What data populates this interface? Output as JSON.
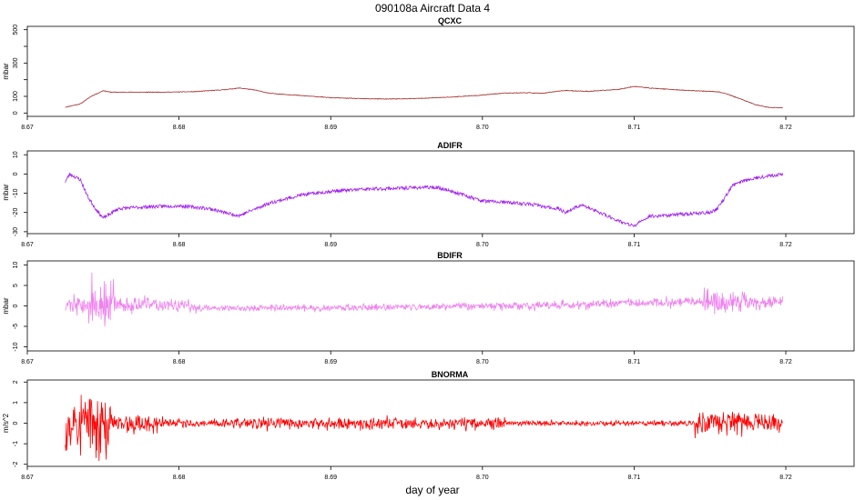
{
  "main_title": "090108a   Aircraft Data 4",
  "xlabel": "day of year",
  "chart_data": [
    {
      "type": "line",
      "title": "QCXC",
      "ylabel": "mbar",
      "color": "#a52a2a",
      "xlim": [
        8.67,
        8.7245
      ],
      "ylim": [
        -20,
        520
      ],
      "yticks": [
        0,
        100,
        200,
        300,
        400,
        500
      ],
      "ytick_labels": [
        "0",
        "100",
        "",
        "300",
        "",
        "500"
      ],
      "xticks": [
        8.67,
        8.68,
        8.69,
        8.7,
        8.71,
        8.72
      ],
      "xtick_labels": [
        "8.67",
        "8.68",
        "8.69",
        "8.70",
        "8.71",
        "8.72"
      ],
      "noise": 2,
      "seed": 11,
      "x": [
        8.6725,
        8.6735,
        8.6742,
        8.6748,
        8.675,
        8.6752,
        8.6755,
        8.677,
        8.679,
        8.681,
        8.683,
        8.684,
        8.685,
        8.686,
        8.688,
        8.69,
        8.692,
        8.694,
        8.696,
        8.698,
        8.7,
        8.7015,
        8.703,
        8.704,
        8.705,
        8.7055,
        8.707,
        8.709,
        8.71,
        8.711,
        8.713,
        8.7155,
        8.716,
        8.717,
        8.718,
        8.7185,
        8.719,
        8.7198
      ],
      "y": [
        35,
        55,
        100,
        125,
        135,
        130,
        125,
        125,
        125,
        128,
        140,
        150,
        138,
        118,
        105,
        92,
        86,
        84,
        88,
        96,
        108,
        120,
        122,
        118,
        132,
        135,
        130,
        142,
        160,
        150,
        138,
        128,
        118,
        85,
        50,
        40,
        33,
        32
      ]
    },
    {
      "type": "line",
      "title": "ADIFR",
      "ylabel": "mbar",
      "color": "#a020f0",
      "xlim": [
        8.67,
        8.7245
      ],
      "ylim": [
        -31,
        12
      ],
      "yticks": [
        10,
        0,
        -10,
        -20,
        -30
      ],
      "ytick_labels": [
        "10",
        "0",
        "-10",
        "-20",
        "-30"
      ],
      "xticks": [
        8.67,
        8.68,
        8.69,
        8.7,
        8.71,
        8.72
      ],
      "xtick_labels": [
        "8.67",
        "8.68",
        "8.69",
        "8.70",
        "8.71",
        "8.72"
      ],
      "noise": 0.9,
      "seed": 23,
      "x": [
        8.6725,
        8.6728,
        8.6735,
        8.674,
        8.6745,
        8.675,
        8.676,
        8.678,
        8.68,
        8.682,
        8.6835,
        8.684,
        8.686,
        8.688,
        8.69,
        8.692,
        8.694,
        8.696,
        8.697,
        8.698,
        8.7,
        8.702,
        8.7035,
        8.704,
        8.705,
        8.7055,
        8.7065,
        8.708,
        8.7095,
        8.71,
        8.711,
        8.713,
        8.715,
        8.7155,
        8.716,
        8.7165,
        8.717,
        8.718,
        8.7198
      ],
      "y": [
        -4,
        0,
        -3,
        -12,
        -18,
        -23,
        -18,
        -17,
        -16.5,
        -18,
        -21,
        -21.5,
        -15,
        -11,
        -9,
        -8,
        -7.5,
        -7,
        -7,
        -9,
        -14,
        -15,
        -16,
        -17,
        -18,
        -20,
        -16,
        -21,
        -26,
        -27,
        -22,
        -21,
        -20,
        -18,
        -12,
        -6,
        -4,
        -2,
        0
      ]
    },
    {
      "type": "line",
      "title": "BDIFR",
      "ylabel": "mbar",
      "color": "#ee82ee",
      "xlim": [
        8.67,
        8.7245
      ],
      "ylim": [
        -11,
        11
      ],
      "yticks": [
        10,
        5,
        0,
        -5,
        -10
      ],
      "ytick_labels": [
        "10",
        "5",
        "0",
        "-5",
        "-10"
      ],
      "xticks": [
        8.67,
        8.68,
        8.69,
        8.7,
        8.71,
        8.72
      ],
      "xtick_labels": [
        "8.67",
        "8.68",
        "8.69",
        "8.70",
        "8.71",
        "8.72"
      ],
      "noise": 0.6,
      "seed": 37,
      "x": [
        8.6725,
        8.674,
        8.675,
        8.677,
        8.68,
        8.682,
        8.686,
        8.69,
        8.695,
        8.7,
        8.703,
        8.706,
        8.709,
        8.712,
        8.715,
        8.716,
        8.7198
      ],
      "y": [
        0.5,
        0,
        0,
        0.3,
        0,
        -0.5,
        -0.5,
        -0.5,
        -0.2,
        0,
        0,
        0.3,
        0.6,
        0.8,
        1,
        0.8,
        1
      ],
      "bursts": [
        [
          8.6725,
          8.674,
          1.5
        ],
        [
          8.674,
          8.6758,
          4.5
        ],
        [
          8.6758,
          8.6795,
          1.2
        ],
        [
          8.6795,
          8.6815,
          1.0
        ],
        [
          8.6815,
          8.7005,
          0.35
        ],
        [
          8.7005,
          8.7045,
          0.6
        ],
        [
          8.7045,
          8.7145,
          0.7
        ],
        [
          8.7145,
          8.7175,
          2.2
        ],
        [
          8.7175,
          8.7198,
          1.0
        ]
      ]
    },
    {
      "type": "line",
      "title": "BNORMA",
      "ylabel": "m/s^2",
      "color": "#ff0000",
      "xlim": [
        8.67,
        8.7245
      ],
      "ylim": [
        -2.1,
        2.1
      ],
      "yticks": [
        2,
        1,
        0,
        -1,
        -2
      ],
      "ytick_labels": [
        "2",
        "1",
        "0",
        "-1",
        "-2"
      ],
      "xticks": [
        8.67,
        8.68,
        8.69,
        8.7,
        8.71,
        8.72
      ],
      "xtick_labels": [
        "8.67",
        "8.68",
        "8.69",
        "8.70",
        "8.71",
        "8.72"
      ],
      "noise": 0,
      "seed": 53,
      "x": [
        8.6725,
        8.7198
      ],
      "y": [
        0,
        0
      ],
      "bursts": [
        [
          8.6725,
          8.6745,
          1.2
        ],
        [
          8.6745,
          8.6755,
          1.4
        ],
        [
          8.6755,
          8.679,
          0.35
        ],
        [
          8.679,
          8.6835,
          0.15
        ],
        [
          8.6835,
          8.698,
          0.22
        ],
        [
          8.698,
          8.7015,
          0.25
        ],
        [
          8.7015,
          8.714,
          0.1
        ],
        [
          8.714,
          8.7175,
          0.5
        ],
        [
          8.7175,
          8.7198,
          0.3
        ]
      ]
    }
  ]
}
